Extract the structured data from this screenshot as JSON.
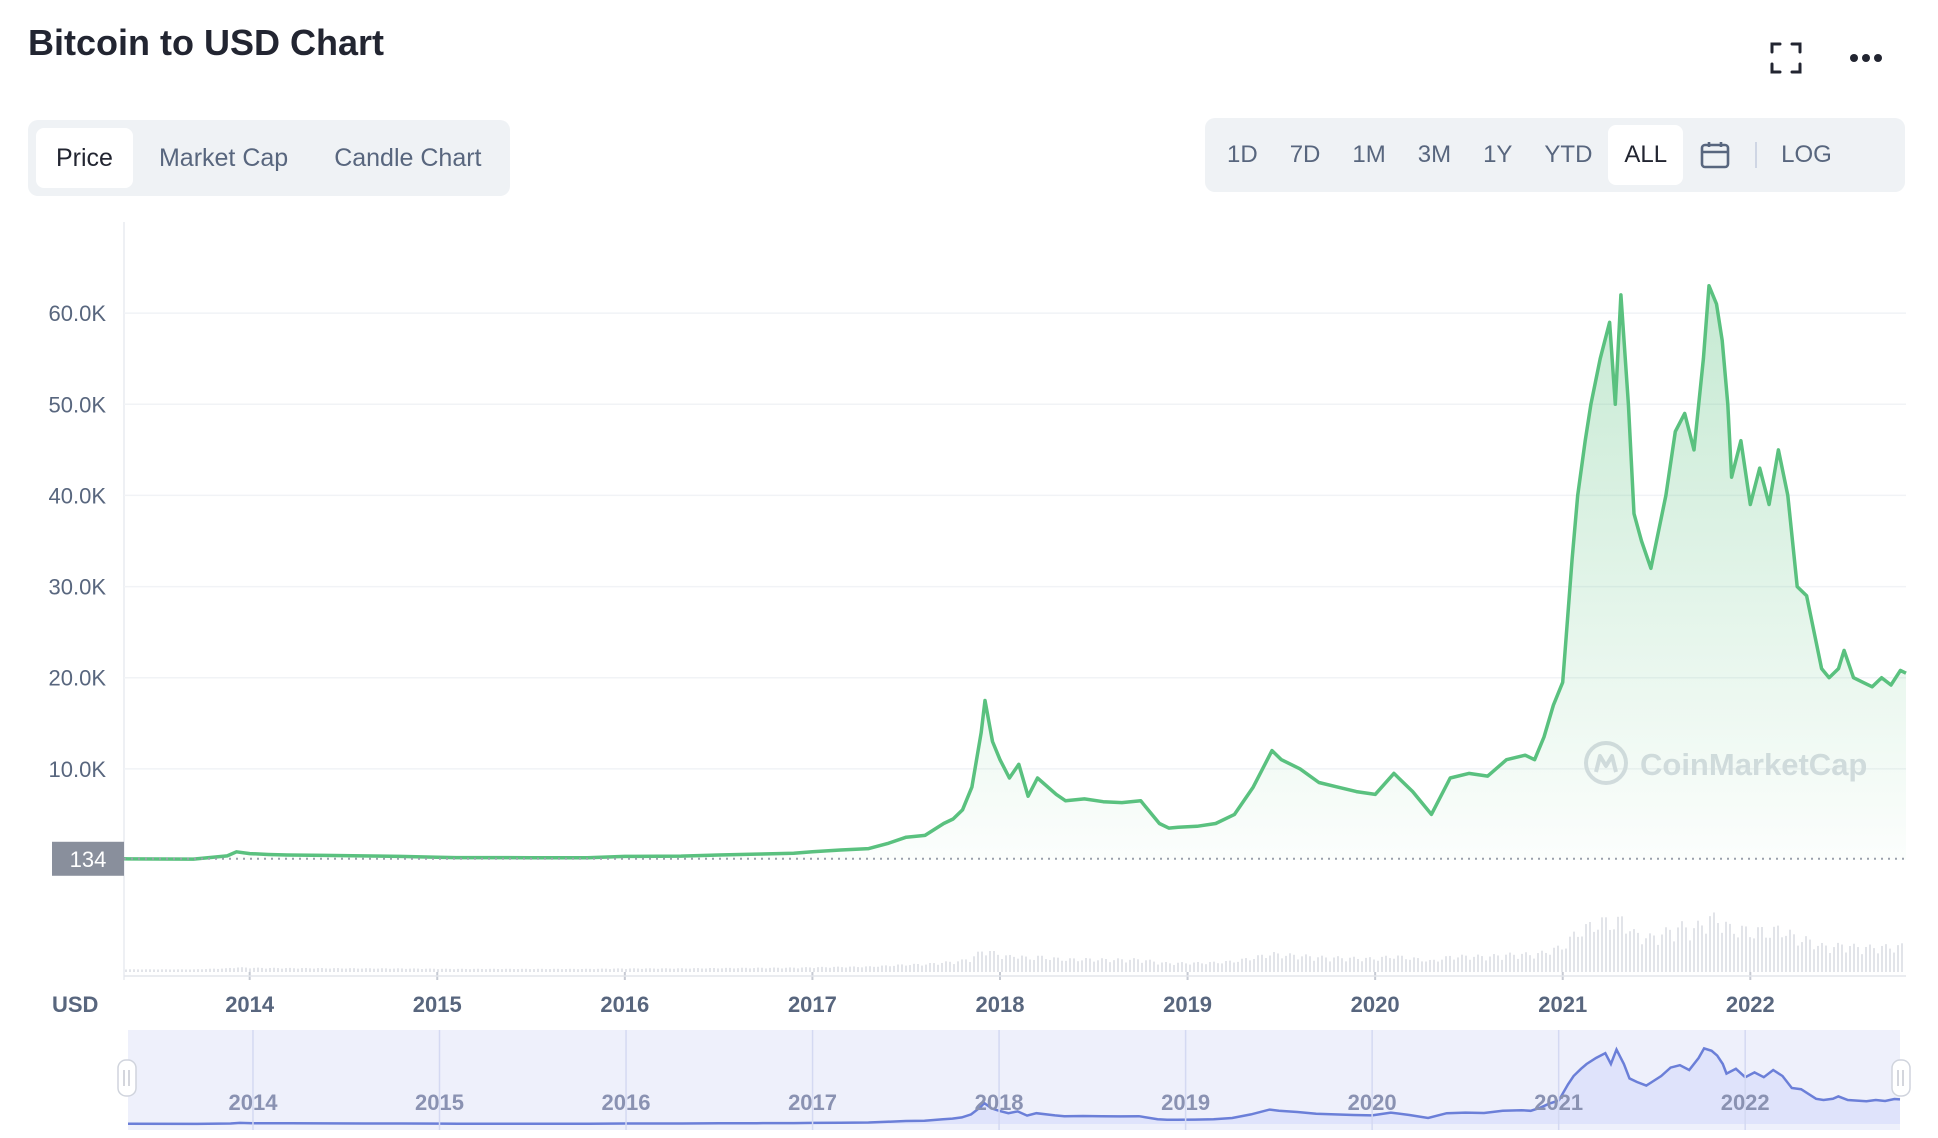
{
  "title": "Bitcoin to USD Chart",
  "icons": {
    "fullscreen": "fullscreen-icon",
    "more": "more-options-icon",
    "calendar": "calendar-icon"
  },
  "tabs": [
    {
      "label": "Price",
      "active": true
    },
    {
      "label": "Market Cap",
      "active": false
    },
    {
      "label": "Candle Chart",
      "active": false
    }
  ],
  "ranges": [
    "1D",
    "7D",
    "1M",
    "3M",
    "1Y",
    "YTD",
    "ALL"
  ],
  "active_range": "ALL",
  "log_label": "LOG",
  "watermark": "CoinMarketCap",
  "currency_label": "USD",
  "colors": {
    "line": "#5ac17f",
    "nav_line": "#6b7fd8",
    "nav_fill": "#dfe3fb",
    "label_bg": "#898f9c"
  },
  "chart_data": {
    "type": "line",
    "ylim": [
      0,
      70000
    ],
    "y_ticks": [
      10000,
      20000,
      30000,
      40000,
      50000,
      60000
    ],
    "y_tick_labels": [
      "10.0K",
      "20.0K",
      "30.0K",
      "40.0K",
      "50.0K",
      "60.0K"
    ],
    "current_marker": {
      "value": 134,
      "label": "134"
    },
    "x_tick_labels": [
      "2014",
      "2015",
      "2016",
      "2017",
      "2018",
      "2019",
      "2020",
      "2021",
      "2022"
    ],
    "x_ticks": [
      2014,
      2015,
      2016,
      2017,
      2018,
      2019,
      2020,
      2021,
      2022
    ],
    "x_range": [
      2013.33,
      2022.83
    ],
    "series": [
      {
        "x": [
          2013.33,
          2013.7,
          2013.88,
          2013.93,
          2014.0,
          2014.1,
          2014.2,
          2014.4,
          2014.6,
          2014.8,
          2015.0,
          2015.1,
          2015.5,
          2015.8,
          2016.0,
          2016.3,
          2016.5,
          2016.7,
          2016.9,
          2017.0,
          2017.15,
          2017.3,
          2017.4,
          2017.5,
          2017.6,
          2017.7,
          2017.75,
          2017.8,
          2017.85,
          2017.9,
          2017.92,
          2017.96,
          2018.0,
          2018.05,
          2018.1,
          2018.15,
          2018.2,
          2018.3,
          2018.35,
          2018.45,
          2018.55,
          2018.65,
          2018.75,
          2018.85,
          2018.9,
          2018.95,
          2019.05,
          2019.15,
          2019.25,
          2019.35,
          2019.45,
          2019.5,
          2019.6,
          2019.7,
          2019.8,
          2019.9,
          2020.0,
          2020.1,
          2020.2,
          2020.3,
          2020.4,
          2020.5,
          2020.6,
          2020.7,
          2020.8,
          2020.85,
          2020.9,
          2020.95,
          2021.0,
          2021.05,
          2021.08,
          2021.12,
          2021.15,
          2021.2,
          2021.25,
          2021.28,
          2021.31,
          2021.35,
          2021.38,
          2021.42,
          2021.47,
          2021.5,
          2021.55,
          2021.6,
          2021.65,
          2021.7,
          2021.75,
          2021.78,
          2021.82,
          2021.85,
          2021.88,
          2021.9,
          2021.95,
          2022.0,
          2022.05,
          2022.1,
          2022.15,
          2022.2,
          2022.25,
          2022.3,
          2022.38,
          2022.42,
          2022.47,
          2022.5,
          2022.55,
          2022.6,
          2022.65,
          2022.7,
          2022.75,
          2022.8,
          2022.83
        ],
        "y": [
          130,
          100,
          450,
          900,
          700,
          600,
          550,
          500,
          450,
          400,
          300,
          260,
          250,
          250,
          400,
          430,
          550,
          650,
          730,
          900,
          1100,
          1250,
          1800,
          2500,
          2700,
          4000,
          4500,
          5500,
          8000,
          14000,
          17500,
          13000,
          11000,
          9000,
          10500,
          7000,
          9000,
          7200,
          6500,
          6700,
          6400,
          6300,
          6500,
          4000,
          3500,
          3600,
          3700,
          4000,
          5000,
          8000,
          12000,
          11000,
          10000,
          8500,
          8000,
          7500,
          7200,
          9500,
          7500,
          5000,
          9000,
          9500,
          9200,
          11000,
          11500,
          11000,
          13500,
          17000,
          19500,
          33000,
          40000,
          46000,
          50000,
          55000,
          59000,
          50000,
          62000,
          50000,
          38000,
          35000,
          32000,
          35000,
          40000,
          47000,
          49000,
          45000,
          55000,
          63000,
          61000,
          57000,
          50000,
          42000,
          46000,
          39000,
          43000,
          39000,
          45000,
          40000,
          30000,
          29000,
          21000,
          20000,
          21000,
          23000,
          20000,
          19500,
          19000,
          20000,
          19200,
          20800,
          20500
        ]
      }
    ],
    "navigator": {
      "x_tick_labels": [
        "2014",
        "2015",
        "2016",
        "2017",
        "2018",
        "2019",
        "2020",
        "2021",
        "2022"
      ]
    }
  }
}
